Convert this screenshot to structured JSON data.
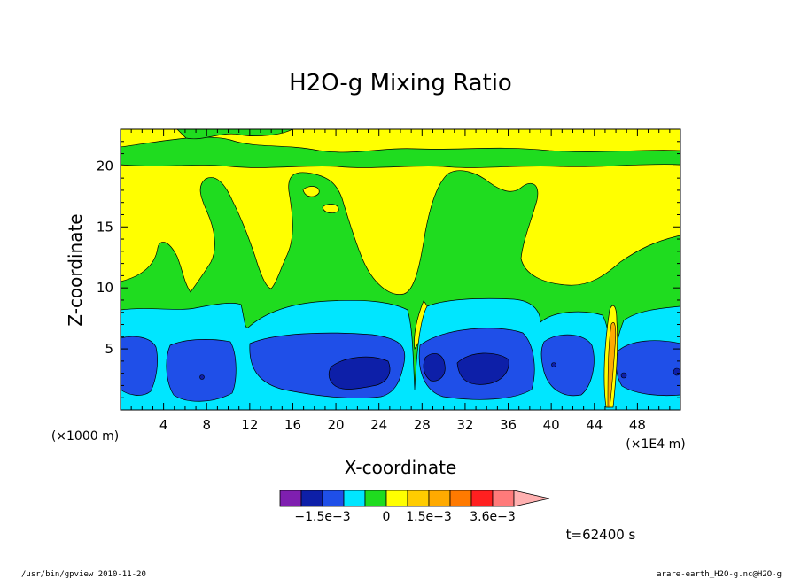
{
  "chart_data": {
    "type": "heatmap",
    "title": "H2O-g Mixing Ratio",
    "xlabel": "X-coordinate",
    "ylabel": "Z-coordinate",
    "x_unit_left": "(×1000 m)",
    "x_unit_right": "(×1E4 m)",
    "xlim": [
      0,
      52
    ],
    "ylim": [
      0,
      23
    ],
    "x_ticks": [
      4,
      8,
      12,
      16,
      20,
      24,
      28,
      32,
      36,
      40,
      44,
      48
    ],
    "y_ticks": [
      5,
      10,
      15,
      20
    ],
    "grid": false,
    "colorbar": {
      "colors": [
        "#7f1fb0",
        "#0d1fa8",
        "#1f4fe8",
        "#00e6ff",
        "#1fdc1f",
        "#ffff00",
        "#ffcc00",
        "#ffaa00",
        "#ff7a00",
        "#ff2020",
        "#ff7a7a",
        "#ffb0b0"
      ],
      "tick_labels": [
        "−1.5e−3",
        "0",
        "1.5e−3",
        "3.6e−3"
      ]
    },
    "regions": [
      {
        "level": "cyan",
        "color": "#00e6ff",
        "desc": "z 0-7 band"
      },
      {
        "level": "blue",
        "color": "#1f4fe8",
        "desc": "blobs z 1-6"
      },
      {
        "level": "dark-blue",
        "color": "#0d1fa8",
        "desc": "cores z 2-4"
      },
      {
        "level": "green",
        "color": "#1fdc1f",
        "desc": "z 7-20"
      },
      {
        "level": "yellow",
        "color": "#ffff00",
        "desc": "upper"
      }
    ],
    "time_label": "t=62400 s"
  },
  "footer": {
    "left": "/usr/bin/gpview  2010-11-20",
    "right": "arare-earth_H2O-g.nc@H2O-g"
  }
}
